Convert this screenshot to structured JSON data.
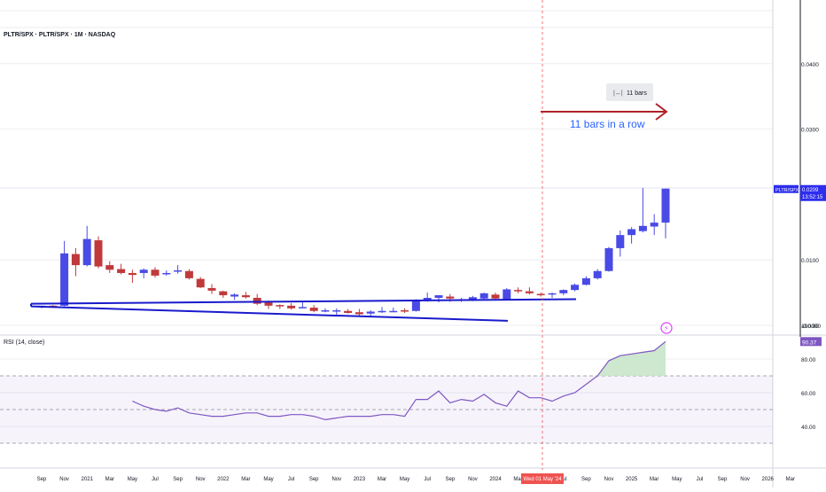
{
  "header": {
    "symbol_line": "PLTR/SPX · PLTR/SPX · 1M · NASDAQ",
    "rsi_title": "RSI (14, close)"
  },
  "price_scale": {
    "ticks": [
      {
        "label": "0.0400",
        "value": 0.04
      },
      {
        "label": "0.0300",
        "value": 0.03
      },
      {
        "label": "0.0100",
        "value": 0.01
      },
      {
        "label": "-0.0000",
        "value": 0.0
      }
    ],
    "last_label": {
      "symbol": "PLTR/SPX",
      "value": "0.0209",
      "countdown": "13:52:15"
    }
  },
  "rsi_scale": {
    "ticks": [
      {
        "label": "100.00",
        "value": 100
      },
      {
        "label": "80.00",
        "value": 80
      },
      {
        "label": "60.00",
        "value": 60
      },
      {
        "label": "40.00",
        "value": 40
      }
    ],
    "last_label": "90.37",
    "upper_band": 70,
    "mid_band": 50,
    "lower_band": 30
  },
  "time_axis": {
    "labels": [
      "Sep",
      "Nov",
      "2021",
      "Mar",
      "May",
      "Jul",
      "Sep",
      "Nov",
      "2022",
      "Mar",
      "May",
      "Jul",
      "Sep",
      "Nov",
      "2023",
      "Mar",
      "May",
      "Jul",
      "Sep",
      "Nov",
      "2024",
      "Mar",
      "May",
      "Jul",
      "Sep",
      "Nov",
      "2025",
      "Mar",
      "May",
      "Jul",
      "Sep",
      "Nov",
      "2026",
      "Mar"
    ],
    "cursor_label": "Wed 01 May '24"
  },
  "annotations": {
    "bars_counter": "11 bars",
    "bars_text": "11 bars in a row"
  },
  "colors": {
    "up": "#4a4ae6",
    "down": "#c0393b",
    "channel": "#1a1acc",
    "arrow": "#b02228",
    "annotation_text": "#2962ff",
    "rsi_line": "#7e57c2",
    "rsi_fill": "#c8e6c9",
    "cursor": "#ef5350",
    "price_tag": "#2d2dee",
    "rsi_tag": "#7e57c2"
  },
  "chart_data": {
    "type": "candlestick",
    "interval": "1M",
    "columns": [
      "open",
      "high",
      "low",
      "close"
    ],
    "candles": [
      [
        0.0028,
        0.003,
        0.0026,
        0.003
      ],
      [
        0.003,
        0.0031,
        0.0029,
        0.0029
      ],
      [
        0.003,
        0.0129,
        0.0029,
        0.011
      ],
      [
        0.0109,
        0.0118,
        0.0075,
        0.0092
      ],
      [
        0.0092,
        0.0152,
        0.009,
        0.0132
      ],
      [
        0.013,
        0.0136,
        0.0087,
        0.009
      ],
      [
        0.0092,
        0.0098,
        0.008,
        0.0085
      ],
      [
        0.0086,
        0.0094,
        0.0078,
        0.008
      ],
      [
        0.008,
        0.0085,
        0.0065,
        0.0077
      ],
      [
        0.008,
        0.0087,
        0.0072,
        0.0085
      ],
      [
        0.0085,
        0.0089,
        0.0073,
        0.0076
      ],
      [
        0.0078,
        0.0084,
        0.0076,
        0.008
      ],
      [
        0.0082,
        0.0092,
        0.0079,
        0.0084
      ],
      [
        0.0083,
        0.0086,
        0.007,
        0.0072
      ],
      [
        0.0071,
        0.0074,
        0.0057,
        0.0058
      ],
      [
        0.0057,
        0.0063,
        0.0048,
        0.0053
      ],
      [
        0.0052,
        0.0053,
        0.0042,
        0.0046
      ],
      [
        0.0044,
        0.0049,
        0.0039,
        0.0047
      ],
      [
        0.0046,
        0.0051,
        0.0041,
        0.0043
      ],
      [
        0.0042,
        0.0048,
        0.0031,
        0.0033
      ],
      [
        0.0035,
        0.0038,
        0.0025,
        0.003
      ],
      [
        0.0031,
        0.0032,
        0.0025,
        0.003
      ],
      [
        0.003,
        0.0034,
        0.0024,
        0.0026
      ],
      [
        0.0027,
        0.0035,
        0.0026,
        0.0028
      ],
      [
        0.0027,
        0.0031,
        0.002,
        0.0022
      ],
      [
        0.0022,
        0.0026,
        0.002,
        0.0023
      ],
      [
        0.0022,
        0.0026,
        0.0016,
        0.0023
      ],
      [
        0.0022,
        0.0025,
        0.0018,
        0.0019
      ],
      [
        0.002,
        0.0025,
        0.0014,
        0.0017
      ],
      [
        0.0018,
        0.0023,
        0.0013,
        0.0021
      ],
      [
        0.0021,
        0.0028,
        0.0019,
        0.0022
      ],
      [
        0.0022,
        0.0027,
        0.002,
        0.0022
      ],
      [
        0.0023,
        0.0026,
        0.0019,
        0.0022
      ],
      [
        0.0022,
        0.004,
        0.0021,
        0.0039
      ],
      [
        0.0038,
        0.005,
        0.0036,
        0.0042
      ],
      [
        0.0042,
        0.0046,
        0.0035,
        0.0046
      ],
      [
        0.0044,
        0.0048,
        0.0036,
        0.0041
      ],
      [
        0.0039,
        0.0042,
        0.0036,
        0.004
      ],
      [
        0.0039,
        0.0045,
        0.0037,
        0.0043
      ],
      [
        0.0041,
        0.005,
        0.0038,
        0.0049
      ],
      [
        0.0047,
        0.005,
        0.0038,
        0.0041
      ],
      [
        0.004,
        0.0057,
        0.0038,
        0.0055
      ],
      [
        0.0054,
        0.0058,
        0.0049,
        0.0052
      ],
      [
        0.0052,
        0.0058,
        0.0047,
        0.0049
      ],
      [
        0.0048,
        0.005,
        0.0044,
        0.0046
      ],
      [
        0.0047,
        0.005,
        0.0042,
        0.0049
      ],
      [
        0.0049,
        0.0055,
        0.0046,
        0.0054
      ],
      [
        0.0054,
        0.0064,
        0.0052,
        0.0062
      ],
      [
        0.0062,
        0.0075,
        0.0061,
        0.0072
      ],
      [
        0.0072,
        0.0086,
        0.007,
        0.0083
      ],
      [
        0.0083,
        0.012,
        0.0082,
        0.0118
      ],
      [
        0.0118,
        0.0145,
        0.0105,
        0.0138
      ],
      [
        0.0138,
        0.015,
        0.0125,
        0.0147
      ],
      [
        0.0144,
        0.021,
        0.0142,
        0.0152
      ],
      [
        0.0151,
        0.017,
        0.0138,
        0.0157
      ],
      [
        0.0157,
        0.0209,
        0.0133,
        0.0209
      ]
    ],
    "rsi": [
      null,
      null,
      null,
      null,
      null,
      null,
      null,
      null,
      55,
      52,
      50,
      49,
      51,
      48,
      47,
      46,
      46,
      47,
      48,
      48,
      46,
      46,
      47,
      47,
      46,
      44,
      45,
      46,
      46,
      46,
      47,
      47,
      46,
      56,
      56,
      61,
      54,
      56,
      55,
      59,
      54,
      52,
      61,
      57,
      57,
      55,
      58,
      60,
      65,
      70,
      79,
      82,
      83,
      84,
      85,
      90.37
    ],
    "price_axis_ticks": [
      0.04,
      0.03,
      0.01,
      0.0
    ],
    "rsi_axis_ticks": [
      100,
      80,
      60,
      40
    ]
  }
}
